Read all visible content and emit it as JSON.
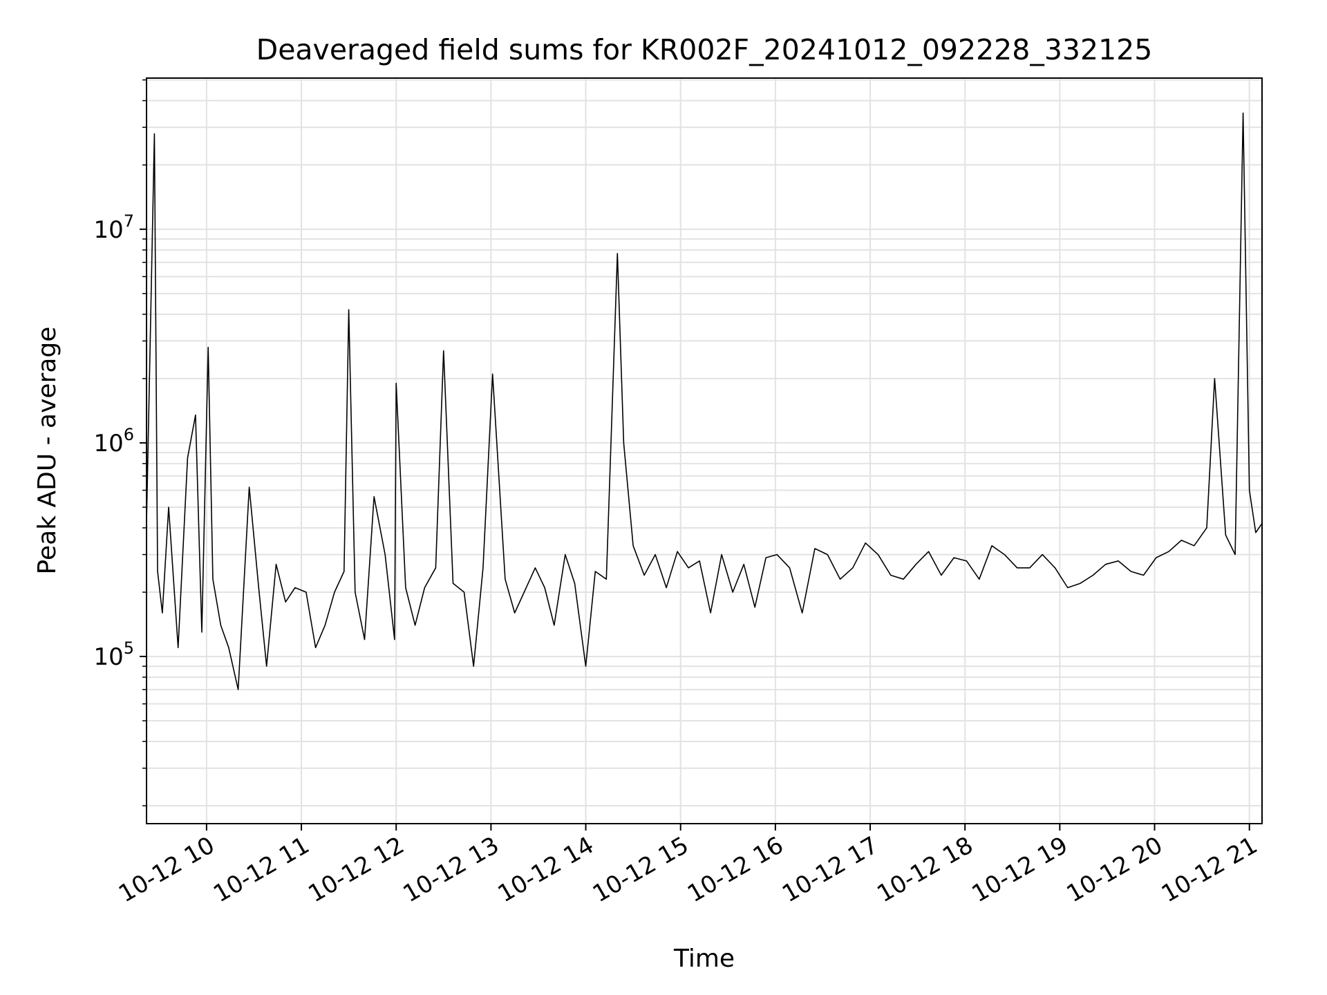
{
  "chart_data": {
    "type": "line",
    "title": "Deaveraged field sums for KR002F_20241012_092228_332125",
    "xlabel": "Time",
    "ylabel": "Peak ADU - average",
    "y_scale": "log",
    "xlim": [
      "2024-10-12 09:22",
      "2024-10-12 21:08"
    ],
    "ylim": [
      16500,
      51000000
    ],
    "x_ticks": [
      "10-12 10",
      "10-12 11",
      "10-12 12",
      "10-12 13",
      "10-12 14",
      "10-12 15",
      "10-12 16",
      "10-12 17",
      "10-12 18",
      "10-12 19",
      "10-12 20",
      "10-12 21"
    ],
    "y_ticks": [
      {
        "base": "10",
        "exp": "5",
        "value": 100000
      },
      {
        "base": "10",
        "exp": "6",
        "value": 1000000
      },
      {
        "base": "10",
        "exp": "7",
        "value": 10000000
      }
    ],
    "grid": true,
    "line_color": "#000000",
    "series": [
      {
        "x": [
          "2024-10-12 09:22",
          "2024-10-12 09:27",
          "2024-10-12 09:29",
          "2024-10-12 09:32",
          "2024-10-12 09:36",
          "2024-10-12 09:42",
          "2024-10-12 09:48",
          "2024-10-12 09:53",
          "2024-10-12 09:57",
          "2024-10-12 10:01",
          "2024-10-12 10:04",
          "2024-10-12 10:09",
          "2024-10-12 10:14",
          "2024-10-12 10:20",
          "2024-10-12 10:27",
          "2024-10-12 10:33",
          "2024-10-12 10:38",
          "2024-10-12 10:44",
          "2024-10-12 10:50",
          "2024-10-12 10:56",
          "2024-10-12 11:03",
          "2024-10-12 11:09",
          "2024-10-12 11:15",
          "2024-10-12 11:21",
          "2024-10-12 11:27",
          "2024-10-12 11:30",
          "2024-10-12 11:34",
          "2024-10-12 11:40",
          "2024-10-12 11:46",
          "2024-10-12 11:53",
          "2024-10-12 11:59",
          "2024-10-12 12:00",
          "2024-10-12 12:06",
          "2024-10-12 12:12",
          "2024-10-12 12:18",
          "2024-10-12 12:25",
          "2024-10-12 12:30",
          "2024-10-12 12:36",
          "2024-10-12 12:43",
          "2024-10-12 12:49",
          "2024-10-12 12:55",
          "2024-10-12 13:01",
          "2024-10-12 13:09",
          "2024-10-12 13:15",
          "2024-10-12 13:21",
          "2024-10-12 13:28",
          "2024-10-12 13:34",
          "2024-10-12 13:40",
          "2024-10-12 13:47",
          "2024-10-12 13:53",
          "2024-10-12 14:00",
          "2024-10-12 14:06",
          "2024-10-12 14:13",
          "2024-10-12 14:20",
          "2024-10-12 14:24",
          "2024-10-12 14:30",
          "2024-10-12 14:37",
          "2024-10-12 14:44",
          "2024-10-12 14:51",
          "2024-10-12 14:58",
          "2024-10-12 15:05",
          "2024-10-12 15:12",
          "2024-10-12 15:19",
          "2024-10-12 15:26",
          "2024-10-12 15:33",
          "2024-10-12 15:40",
          "2024-10-12 15:47",
          "2024-10-12 15:54",
          "2024-10-12 16:01",
          "2024-10-12 16:09",
          "2024-10-12 16:17",
          "2024-10-12 16:25",
          "2024-10-12 16:33",
          "2024-10-12 16:41",
          "2024-10-12 16:49",
          "2024-10-12 16:57",
          "2024-10-12 17:05",
          "2024-10-12 17:13",
          "2024-10-12 17:21",
          "2024-10-12 17:29",
          "2024-10-12 17:37",
          "2024-10-12 17:45",
          "2024-10-12 17:53",
          "2024-10-12 18:01",
          "2024-10-12 18:09",
          "2024-10-12 18:17",
          "2024-10-12 18:25",
          "2024-10-12 18:33",
          "2024-10-12 18:41",
          "2024-10-12 18:49",
          "2024-10-12 18:57",
          "2024-10-12 19:05",
          "2024-10-12 19:13",
          "2024-10-12 19:21",
          "2024-10-12 19:29",
          "2024-10-12 19:37",
          "2024-10-12 19:45",
          "2024-10-12 19:53",
          "2024-10-12 20:01",
          "2024-10-12 20:09",
          "2024-10-12 20:17",
          "2024-10-12 20:25",
          "2024-10-12 20:33",
          "2024-10-12 20:38",
          "2024-10-12 20:45",
          "2024-10-12 20:51",
          "2024-10-12 20:56",
          "2024-10-12 21:00",
          "2024-10-12 21:04",
          "2024-10-12 21:08"
        ],
        "y": [
          420000,
          28000000,
          250000,
          160000,
          500000,
          110000,
          850000,
          1350000,
          130000,
          2800000,
          230000,
          140000,
          110000,
          70000,
          620000,
          210000,
          90000,
          270000,
          180000,
          210000,
          200000,
          110000,
          140000,
          200000,
          250000,
          4200000,
          200000,
          120000,
          560000,
          300000,
          120000,
          1900000,
          210000,
          140000,
          210000,
          260000,
          2700000,
          220000,
          200000,
          90000,
          260000,
          2100000,
          230000,
          160000,
          200000,
          260000,
          210000,
          140000,
          300000,
          220000,
          90000,
          250000,
          230000,
          7700000,
          1000000,
          330000,
          240000,
          300000,
          210000,
          310000,
          260000,
          280000,
          160000,
          300000,
          200000,
          270000,
          170000,
          290000,
          300000,
          260000,
          160000,
          320000,
          300000,
          230000,
          260000,
          340000,
          300000,
          240000,
          230000,
          270000,
          310000,
          240000,
          290000,
          280000,
          230000,
          330000,
          300000,
          260000,
          260000,
          300000,
          260000,
          210000,
          220000,
          240000,
          270000,
          280000,
          250000,
          240000,
          290000,
          310000,
          350000,
          330000,
          400000,
          2000000,
          370000,
          300000,
          35000000,
          600000,
          380000,
          420000
        ]
      }
    ]
  }
}
